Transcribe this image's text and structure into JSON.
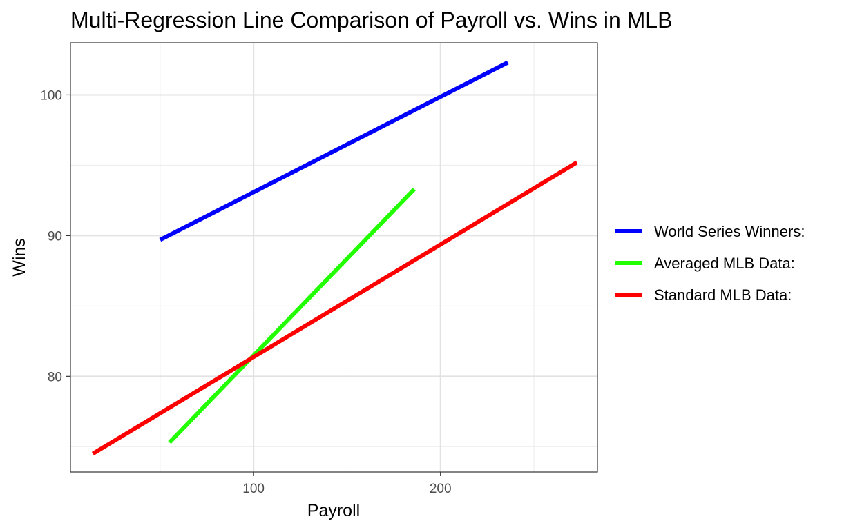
{
  "chart_data": {
    "type": "line",
    "title": "Multi-Regression Line Comparison of Payroll vs. Wins in MLB",
    "xlabel": "Payroll",
    "ylabel": "Wins",
    "xlim": [
      2,
      284
    ],
    "ylim": [
      73.2,
      103.7
    ],
    "x_ticks": [
      100,
      200
    ],
    "x_minor_ticks": [
      50,
      150,
      250
    ],
    "y_ticks": [
      80,
      90,
      100
    ],
    "y_minor_ticks": [
      75,
      85,
      95
    ],
    "grid": true,
    "legend_position": "right",
    "series": [
      {
        "name": "World Series Winners:",
        "color": "#0000ff",
        "x": [
          50,
          236
        ],
        "y": [
          89.7,
          102.3
        ]
      },
      {
        "name": "Averaged MLB Data:",
        "color": "#22ff00",
        "x": [
          55,
          186
        ],
        "y": [
          75.3,
          93.3
        ]
      },
      {
        "name": "Standard MLB Data:",
        "color": "#ff0000",
        "x": [
          14,
          273
        ],
        "y": [
          74.5,
          95.2
        ]
      }
    ]
  }
}
